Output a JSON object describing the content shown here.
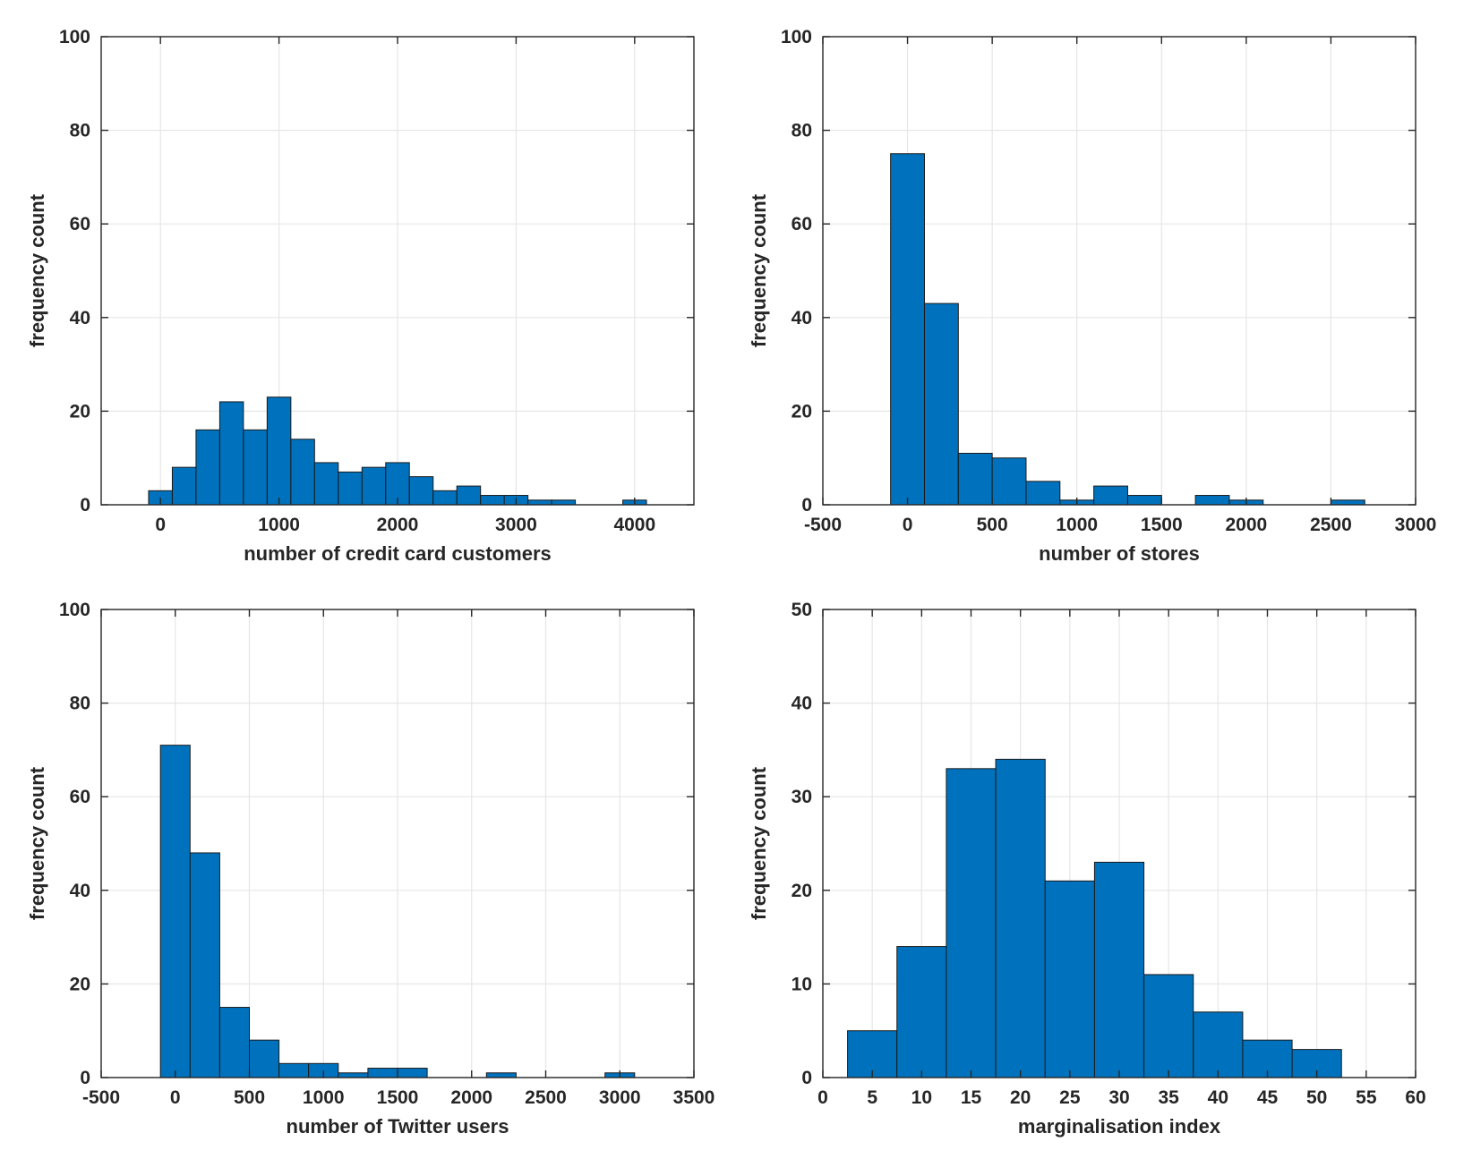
{
  "chart_data": [
    {
      "type": "bar",
      "title": "",
      "xlabel": "number of credit card customers",
      "ylabel": "frequency count",
      "xlim": [
        -500,
        4500
      ],
      "ylim": [
        0,
        100
      ],
      "xticks": [
        0,
        1000,
        2000,
        3000,
        4000
      ],
      "xtick_labels": [
        "0",
        "1000",
        "2000",
        "3000",
        "4000"
      ],
      "yticks": [
        0,
        20,
        40,
        60,
        80,
        100
      ],
      "ytick_labels": [
        "0",
        "20",
        "40",
        "60",
        "80",
        "100"
      ],
      "grid": true,
      "color": "#0072BD",
      "bins": [
        {
          "x0": -100,
          "x1": 100,
          "count": 3
        },
        {
          "x0": 100,
          "x1": 300,
          "count": 8
        },
        {
          "x0": 300,
          "x1": 500,
          "count": 16
        },
        {
          "x0": 500,
          "x1": 700,
          "count": 22
        },
        {
          "x0": 700,
          "x1": 900,
          "count": 16
        },
        {
          "x0": 900,
          "x1": 1100,
          "count": 23
        },
        {
          "x0": 1100,
          "x1": 1300,
          "count": 14
        },
        {
          "x0": 1300,
          "x1": 1500,
          "count": 9
        },
        {
          "x0": 1500,
          "x1": 1700,
          "count": 7
        },
        {
          "x0": 1700,
          "x1": 1900,
          "count": 8
        },
        {
          "x0": 1900,
          "x1": 2100,
          "count": 9
        },
        {
          "x0": 2100,
          "x1": 2300,
          "count": 6
        },
        {
          "x0": 2300,
          "x1": 2500,
          "count": 3
        },
        {
          "x0": 2500,
          "x1": 2700,
          "count": 4
        },
        {
          "x0": 2700,
          "x1": 2900,
          "count": 2
        },
        {
          "x0": 2900,
          "x1": 3100,
          "count": 2
        },
        {
          "x0": 3100,
          "x1": 3300,
          "count": 1
        },
        {
          "x0": 3300,
          "x1": 3500,
          "count": 1
        },
        {
          "x0": 3500,
          "x1": 3700,
          "count": 0
        },
        {
          "x0": 3700,
          "x1": 3900,
          "count": 0
        },
        {
          "x0": 3900,
          "x1": 4100,
          "count": 1
        }
      ]
    },
    {
      "type": "bar",
      "title": "",
      "xlabel": "number of stores",
      "ylabel": "frequency count",
      "xlim": [
        -500,
        3000
      ],
      "ylim": [
        0,
        100
      ],
      "xticks": [
        -500,
        0,
        500,
        1000,
        1500,
        2000,
        2500,
        3000
      ],
      "xtick_labels": [
        "-500",
        "0",
        "500",
        "1000",
        "1500",
        "2000",
        "2500",
        "3000"
      ],
      "yticks": [
        0,
        20,
        40,
        60,
        80,
        100
      ],
      "ytick_labels": [
        "0",
        "20",
        "40",
        "60",
        "80",
        "100"
      ],
      "grid": true,
      "color": "#0072BD",
      "bins": [
        {
          "x0": -100,
          "x1": 100,
          "count": 75
        },
        {
          "x0": 100,
          "x1": 300,
          "count": 43
        },
        {
          "x0": 300,
          "x1": 500,
          "count": 11
        },
        {
          "x0": 500,
          "x1": 700,
          "count": 10
        },
        {
          "x0": 700,
          "x1": 900,
          "count": 5
        },
        {
          "x0": 900,
          "x1": 1100,
          "count": 1
        },
        {
          "x0": 1100,
          "x1": 1300,
          "count": 4
        },
        {
          "x0": 1300,
          "x1": 1500,
          "count": 2
        },
        {
          "x0": 1500,
          "x1": 1700,
          "count": 0
        },
        {
          "x0": 1700,
          "x1": 1900,
          "count": 2
        },
        {
          "x0": 1900,
          "x1": 2100,
          "count": 1
        },
        {
          "x0": 2100,
          "x1": 2300,
          "count": 0
        },
        {
          "x0": 2300,
          "x1": 2500,
          "count": 0
        },
        {
          "x0": 2500,
          "x1": 2700,
          "count": 1
        }
      ]
    },
    {
      "type": "bar",
      "title": "",
      "xlabel": "number of Twitter users",
      "ylabel": "frequency count",
      "xlim": [
        -500,
        3500
      ],
      "ylim": [
        0,
        100
      ],
      "xticks": [
        -500,
        0,
        500,
        1000,
        1500,
        2000,
        2500,
        3000,
        3500
      ],
      "xtick_labels": [
        "-500",
        "0",
        "500",
        "1000",
        "1500",
        "2000",
        "2500",
        "3000",
        "3500"
      ],
      "yticks": [
        0,
        20,
        40,
        60,
        80,
        100
      ],
      "ytick_labels": [
        "0",
        "20",
        "40",
        "60",
        "80",
        "100"
      ],
      "grid": true,
      "color": "#0072BD",
      "bins": [
        {
          "x0": -100,
          "x1": 100,
          "count": 71
        },
        {
          "x0": 100,
          "x1": 300,
          "count": 48
        },
        {
          "x0": 300,
          "x1": 500,
          "count": 15
        },
        {
          "x0": 500,
          "x1": 700,
          "count": 8
        },
        {
          "x0": 700,
          "x1": 900,
          "count": 3
        },
        {
          "x0": 900,
          "x1": 1100,
          "count": 3
        },
        {
          "x0": 1100,
          "x1": 1300,
          "count": 1
        },
        {
          "x0": 1300,
          "x1": 1500,
          "count": 2
        },
        {
          "x0": 1500,
          "x1": 1700,
          "count": 2
        },
        {
          "x0": 1700,
          "x1": 1900,
          "count": 0
        },
        {
          "x0": 1900,
          "x1": 2100,
          "count": 0
        },
        {
          "x0": 2100,
          "x1": 2300,
          "count": 1
        },
        {
          "x0": 2300,
          "x1": 2500,
          "count": 0
        },
        {
          "x0": 2500,
          "x1": 2700,
          "count": 0
        },
        {
          "x0": 2700,
          "x1": 2900,
          "count": 0
        },
        {
          "x0": 2900,
          "x1": 3100,
          "count": 1
        }
      ]
    },
    {
      "type": "bar",
      "title": "",
      "xlabel": "marginalisation index",
      "ylabel": "frequency count",
      "xlim": [
        0,
        60
      ],
      "ylim": [
        0,
        50
      ],
      "xticks": [
        0,
        5,
        10,
        15,
        20,
        25,
        30,
        35,
        40,
        45,
        50,
        55,
        60
      ],
      "xtick_labels": [
        "0",
        "5",
        "10",
        "15",
        "20",
        "25",
        "30",
        "35",
        "40",
        "45",
        "50",
        "55",
        "60"
      ],
      "yticks": [
        0,
        10,
        20,
        30,
        40,
        50
      ],
      "ytick_labels": [
        "0",
        "10",
        "20",
        "30",
        "40",
        "50"
      ],
      "grid": true,
      "color": "#0072BD",
      "bins": [
        {
          "x0": 2.5,
          "x1": 7.5,
          "count": 5
        },
        {
          "x0": 7.5,
          "x1": 12.5,
          "count": 14
        },
        {
          "x0": 12.5,
          "x1": 17.5,
          "count": 33
        },
        {
          "x0": 17.5,
          "x1": 22.5,
          "count": 34
        },
        {
          "x0": 22.5,
          "x1": 27.5,
          "count": 21
        },
        {
          "x0": 27.5,
          "x1": 32.5,
          "count": 23
        },
        {
          "x0": 32.5,
          "x1": 37.5,
          "count": 11
        },
        {
          "x0": 37.5,
          "x1": 42.5,
          "count": 7
        },
        {
          "x0": 42.5,
          "x1": 47.5,
          "count": 4
        },
        {
          "x0": 47.5,
          "x1": 52.5,
          "count": 3
        }
      ]
    }
  ]
}
